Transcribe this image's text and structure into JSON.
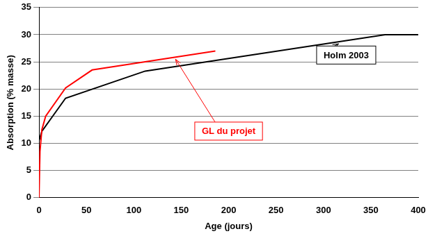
{
  "chart_data": {
    "type": "line",
    "x_label": "Age (jours)",
    "y_label": "Absorption (% masse)",
    "series": [
      {
        "name": "GL du projet",
        "color": "#ff0000",
        "x": [
          0,
          1,
          3,
          7,
          28,
          56,
          186
        ],
        "values": [
          0,
          8.5,
          12.5,
          15,
          20.2,
          23.5,
          27
        ]
      },
      {
        "name": "Holm 2003",
        "color": "#000000",
        "x": [
          0,
          3,
          28,
          112,
          365,
          400
        ],
        "values": [
          10.5,
          12.2,
          18.3,
          23.3,
          30,
          30
        ]
      }
    ],
    "xlim": [
      0,
      400
    ],
    "xticks": [
      0,
      50,
      100,
      150,
      200,
      250,
      300,
      350,
      400
    ],
    "ylim": [
      0,
      35
    ],
    "yticks": [
      0,
      5,
      10,
      15,
      20,
      25,
      30,
      35
    ],
    "grid": true
  }
}
